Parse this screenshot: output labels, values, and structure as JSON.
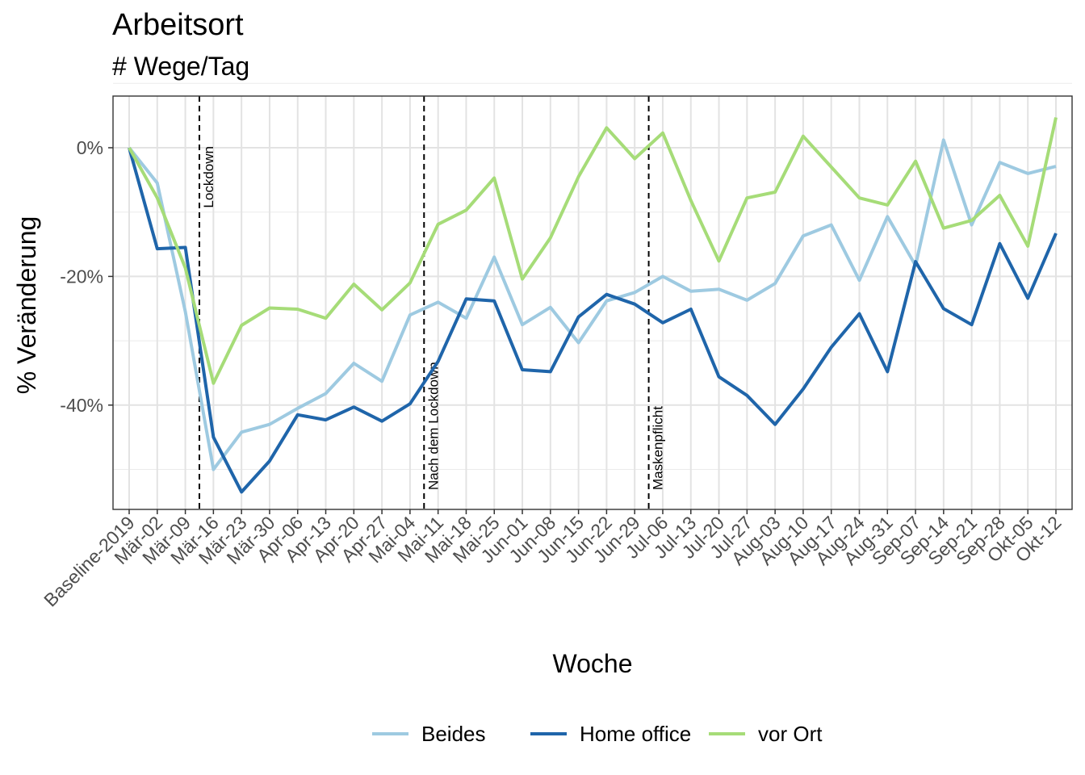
{
  "chart_data": {
    "type": "line",
    "title": "Arbeitsort",
    "subtitle": "# Wege/Tag",
    "xlabel": "Woche",
    "ylabel": "% Veränderung",
    "ylim": [
      -56,
      7.5
    ],
    "yticks": [
      0,
      -20,
      -40
    ],
    "ytick_labels": [
      "0%",
      "-20%",
      "-40%"
    ],
    "grid": true,
    "legend_position": "bottom",
    "categories": [
      "Baseline-2019",
      "Mär-02",
      "Mär-09",
      "Mär-16",
      "Mär-23",
      "Mär-30",
      "Apr-06",
      "Apr-13",
      "Apr-20",
      "Apr-27",
      "Mai-04",
      "Mai-11",
      "Mai-18",
      "Mai-25",
      "Jun-01",
      "Jun-08",
      "Jun-15",
      "Jun-22",
      "Jun-29",
      "Jul-06",
      "Jul-13",
      "Jul-20",
      "Jul-27",
      "Aug-03",
      "Aug-10",
      "Aug-17",
      "Aug-24",
      "Aug-31",
      "Sep-07",
      "Sep-14",
      "Sep-21",
      "Sep-28",
      "Okt-05",
      "Okt-12"
    ],
    "series": [
      {
        "name": "Beides",
        "color": "#9ecae1",
        "values": [
          0,
          -5.5,
          -25.5,
          -50,
          -44.2,
          -43,
          -40.5,
          -38.2,
          -33.5,
          -36.3,
          -26,
          -24,
          -26.5,
          -17,
          -27.5,
          -24.8,
          -30.3,
          -23.8,
          -22.5,
          -20,
          -22.3,
          -22,
          -23.7,
          -21.1,
          -13.7,
          -12,
          -20.6,
          -10.7,
          -18.3,
          1.2,
          -12,
          -2.3,
          -4,
          -2.9
        ]
      },
      {
        "name": "Home office",
        "color": "#1f65aa",
        "values": [
          0,
          -15.7,
          -15.5,
          -45,
          -53.5,
          -48.7,
          -41.5,
          -42.3,
          -40.3,
          -42.5,
          -39.8,
          -33.2,
          -23.5,
          -23.8,
          -34.5,
          -34.8,
          -26.3,
          -22.8,
          -24.3,
          -27.2,
          -25.1,
          -35.6,
          -38.5,
          -43,
          -37.5,
          -31,
          -25.8,
          -34.8,
          -17.7,
          -25,
          -27.5,
          -14.9,
          -23.4,
          -13.3
        ]
      },
      {
        "name": "vor Ort",
        "color": "#a6dc78",
        "values": [
          0,
          -7.8,
          -18.7,
          -36.6,
          -27.6,
          -24.9,
          -25.1,
          -26.5,
          -21.2,
          -25.2,
          -21,
          -11.9,
          -9.7,
          -4.7,
          -20.4,
          -14,
          -4.5,
          3.1,
          -1.7,
          2.3,
          -8.2,
          -17.6,
          -7.8,
          -6.9,
          1.8,
          -3,
          -7.8,
          -8.9,
          -2.1,
          -12.5,
          -11.3,
          -7.4,
          -15.3,
          4.7
        ]
      }
    ],
    "annotations": [
      {
        "label": "Lockdown",
        "after_category": "Mär-09"
      },
      {
        "label": "Nach dem Lockdown",
        "after_category": "Mai-04"
      },
      {
        "label": "Maskenpflicht",
        "after_category": "Jun-29"
      }
    ]
  }
}
